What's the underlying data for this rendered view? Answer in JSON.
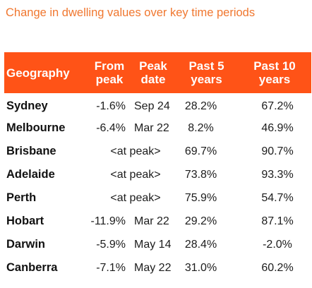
{
  "title": "Change in dwelling values over key time periods",
  "chart_data": {
    "type": "table",
    "title": "Change in dwelling values over key time periods",
    "columns": [
      "Geography",
      "From peak",
      "Peak date",
      "Past 5 years",
      "Past 10 years"
    ],
    "header_lines": [
      [
        "Geography"
      ],
      [
        "From",
        "peak"
      ],
      [
        "Peak",
        "date"
      ],
      [
        "Past 5",
        "years"
      ],
      [
        "Past 10",
        "years"
      ]
    ],
    "rows": [
      {
        "geography": "Sydney",
        "from_peak": "-1.6%",
        "peak_date": "Sep 24",
        "past_5_years": "28.2%",
        "past_10_years": "67.2%"
      },
      {
        "geography": "Melbourne",
        "from_peak": "-6.4%",
        "peak_date": "Mar 22",
        "past_5_years": "8.2%",
        "past_10_years": "46.9%"
      },
      {
        "geography": "Brisbane",
        "at_peak": "<at peak>",
        "past_5_years": "69.7%",
        "past_10_years": "90.7%"
      },
      {
        "geography": "Adelaide",
        "at_peak": "<at peak>",
        "past_5_years": "73.8%",
        "past_10_years": "93.3%"
      },
      {
        "geography": "Perth",
        "at_peak": "<at peak>",
        "past_5_years": "75.9%",
        "past_10_years": "54.7%"
      },
      {
        "geography": "Hobart",
        "from_peak": "-11.9%",
        "peak_date": "Mar 22",
        "past_5_years": "29.2%",
        "past_10_years": "87.1%"
      },
      {
        "geography": "Darwin",
        "from_peak": "-5.9%",
        "peak_date": "May 14",
        "past_5_years": "28.4%",
        "past_10_years": "-2.0%"
      },
      {
        "geography": "Canberra",
        "from_peak": "-7.1%",
        "peak_date": "May 22",
        "past_5_years": "31.0%",
        "past_10_years": "60.2%"
      }
    ]
  },
  "colors": {
    "title": "#f0772f",
    "header_background": "#ff5317",
    "header_text": "#ffffff",
    "body_text": "#1c1c1c"
  }
}
